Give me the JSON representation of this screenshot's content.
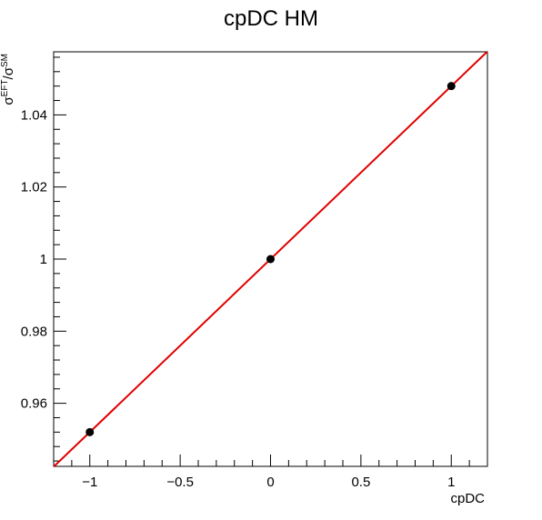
{
  "chart_data": {
    "type": "scatter",
    "title": "cpDC HM",
    "xlabel": "cpDC",
    "ylabel": "σ^{EFT}/σ^{SM}",
    "xlim": [
      -1.2,
      1.2
    ],
    "ylim": [
      0.9425,
      1.0575
    ],
    "x_ticks": [
      -1,
      -0.5,
      0,
      0.5,
      1
    ],
    "x_tick_labels": [
      "−1",
      "−0.5",
      "0",
      "0.5",
      "1"
    ],
    "y_ticks": [
      0.96,
      0.98,
      1.0,
      1.02,
      1.04
    ],
    "y_tick_labels": [
      "0.96",
      "0.98",
      "1",
      "1.02",
      "1.04"
    ],
    "grid": false,
    "series": [
      {
        "kind": "points",
        "x": [
          -1,
          0,
          1
        ],
        "y": [
          0.952,
          1.0,
          1.048
        ],
        "color": "#000000"
      },
      {
        "kind": "fit-line",
        "x": [
          -1.2,
          1.2
        ],
        "y": [
          0.9424,
          1.0576
        ],
        "color": "#e00000"
      }
    ]
  }
}
